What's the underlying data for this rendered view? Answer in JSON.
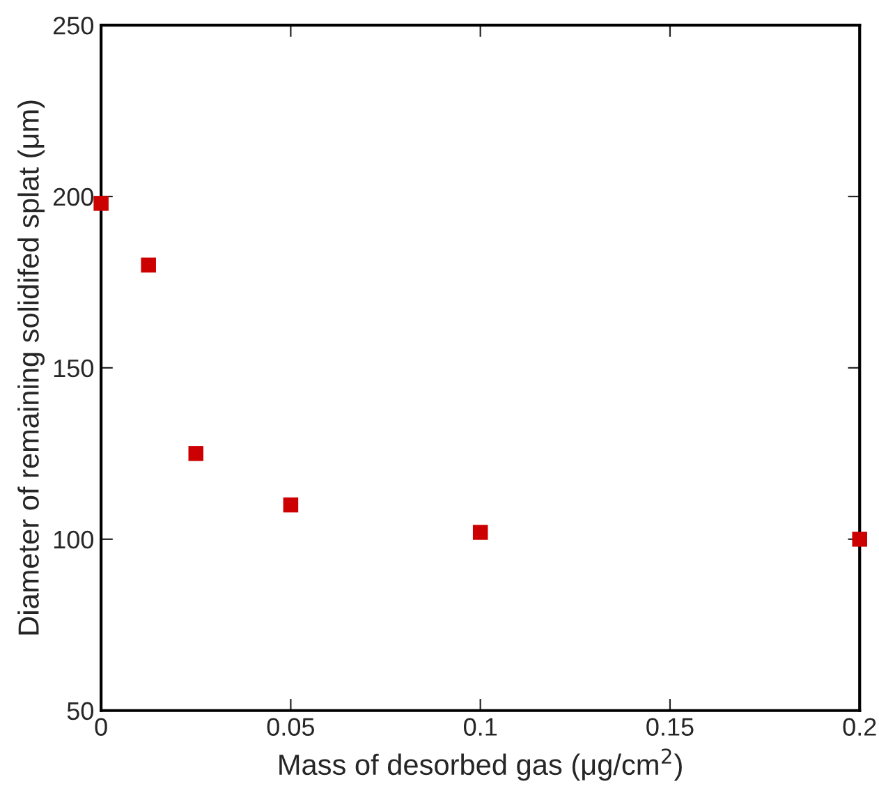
{
  "chart_data": {
    "type": "scatter",
    "xlabel": "Mass of desorbed gas (μg/cm$^{2}$)",
    "ylabel": "Diameter of remaining solidifed splat (μm)",
    "x": [
      0,
      0.0125,
      0.025,
      0.05,
      0.1,
      0.2
    ],
    "series": [
      {
        "color": "#cc0000",
        "values": [
          198,
          180,
          125,
          110,
          102,
          100
        ]
      }
    ],
    "marker": "square",
    "xlim": [
      0,
      0.2
    ],
    "ylim": [
      50,
      250
    ],
    "xticks": [
      0,
      0.05,
      {
        "value": 0.1,
        "label": "0.1"
      },
      0.15,
      {
        "value": 0.2,
        "label": "0.2"
      }
    ],
    "yticks": [
      50,
      100,
      150,
      200,
      250
    ],
    "grid": false,
    "legend": false
  }
}
